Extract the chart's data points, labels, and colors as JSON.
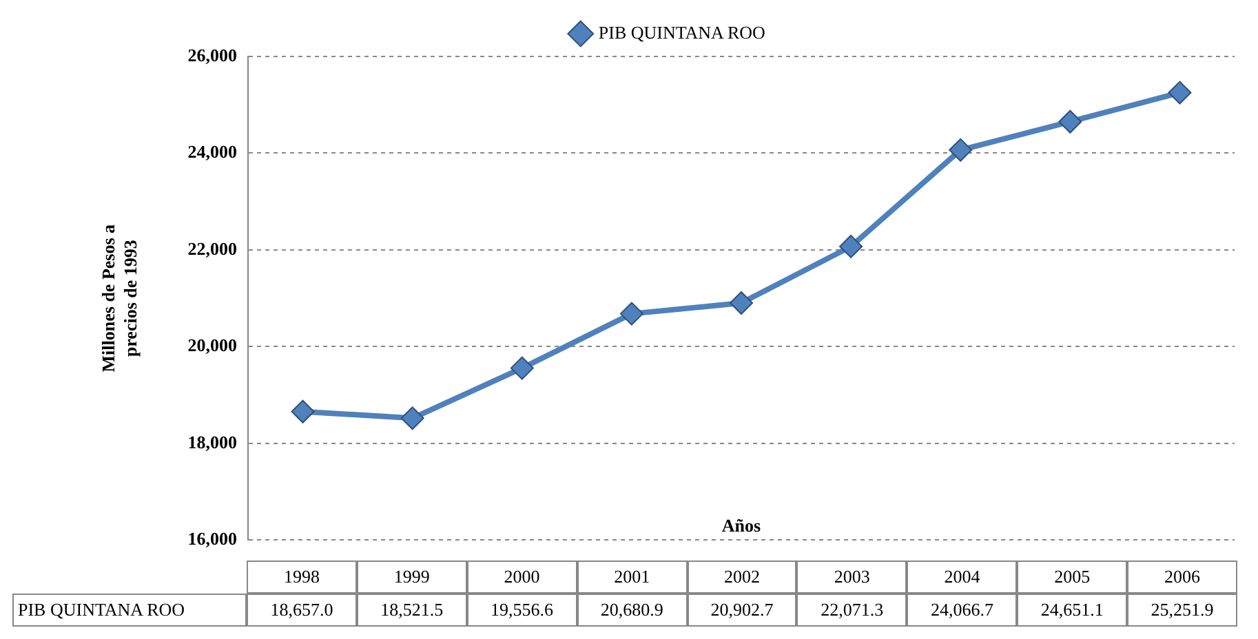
{
  "chart_data": {
    "type": "line",
    "xlabel": "Años",
    "ylabel": "Millones de Pesos a precios de 1993",
    "categories": [
      "1998",
      "1999",
      "2000",
      "2001",
      "2002",
      "2003",
      "2004",
      "2005",
      "2006"
    ],
    "series": [
      {
        "name": "PIB QUINTANA ROO",
        "color": "#4f81bd",
        "values": [
          18657.0,
          18521.5,
          19556.6,
          20680.9,
          20902.7,
          22071.3,
          24066.7,
          24651.1,
          25251.9
        ],
        "value_labels": [
          "18,657.0",
          "18,521.5",
          "19,556.6",
          "20,680.9",
          "20,902.7",
          "22,071.3",
          "24,066.7",
          "24,651.1",
          "25,251.9"
        ]
      }
    ],
    "ylim": [
      16000,
      26000
    ],
    "yticks": [
      {
        "value": 16000,
        "label": "16,000"
      },
      {
        "value": 18000,
        "label": "18,000"
      },
      {
        "value": 20000,
        "label": "20,000"
      },
      {
        "value": 22000,
        "label": "22,000"
      },
      {
        "value": 24000,
        "label": "24,000"
      },
      {
        "value": 26000,
        "label": "26,000"
      }
    ],
    "grid": "y",
    "legend": "top",
    "marker": "diamond",
    "line_style": "solid"
  }
}
